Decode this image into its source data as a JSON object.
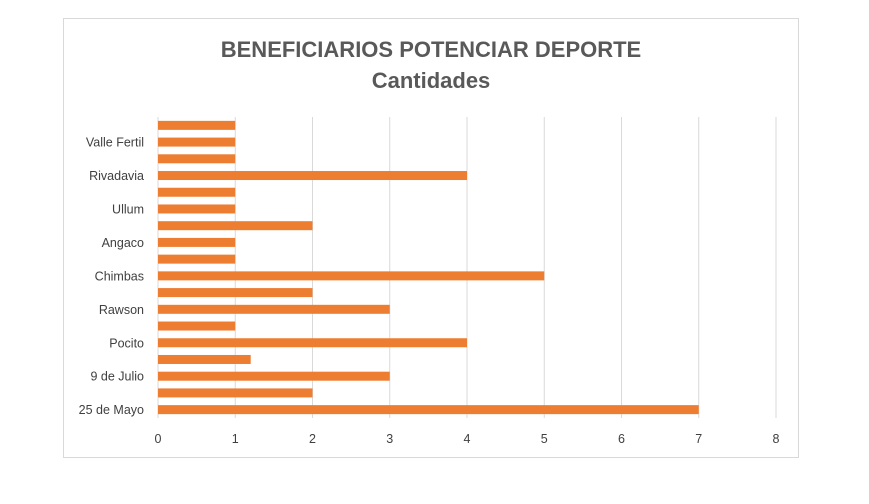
{
  "chart_data": {
    "type": "bar",
    "orientation": "horizontal",
    "title": "BENEFICIARIOS POTENCIAR DEPORTE",
    "subtitle": "Cantidades",
    "xlabel": "",
    "ylabel": "",
    "xlim": [
      0,
      8
    ],
    "x_ticks": [
      "0",
      "1",
      "2",
      "3",
      "4",
      "5",
      "6",
      "7",
      "8"
    ],
    "grid": true,
    "legend": "none",
    "bar_color": "#ED7D31",
    "categories_bottom_to_top": [
      "25 de Mayo",
      "",
      "9 de Julio",
      "",
      "Pocito",
      "",
      "Rawson",
      "",
      "Chimbas",
      "",
      "Angaco",
      "",
      "Ullum",
      "",
      "Rivadavia",
      "",
      "Valle Fertil",
      ""
    ],
    "values_bottom_to_top": [
      7,
      2,
      3,
      1.2,
      4,
      1,
      3,
      2,
      5,
      1,
      1,
      2,
      1,
      1,
      4,
      1,
      1,
      1
    ]
  }
}
